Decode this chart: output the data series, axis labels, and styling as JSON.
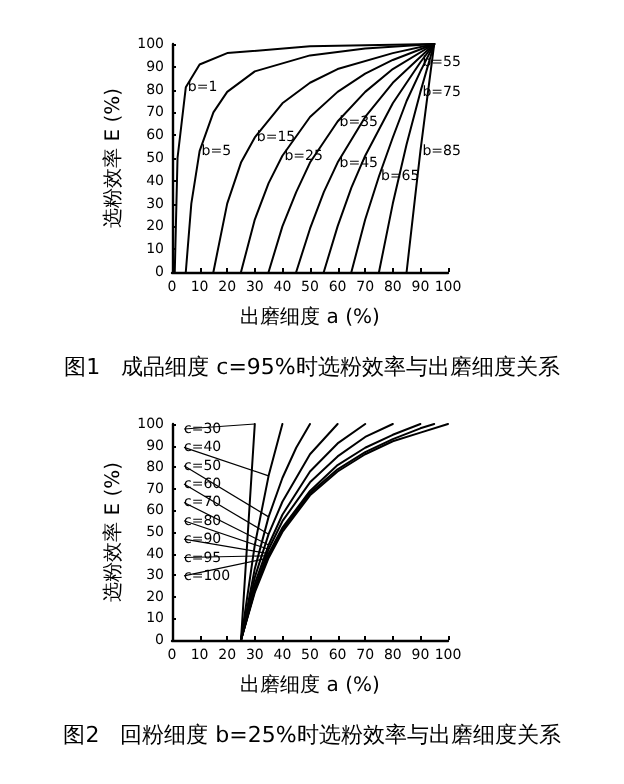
{
  "chart_data": [
    {
      "type": "line",
      "title": "图1   成品细度 c=95%时选粉效率与出磨细度关系",
      "xlabel": "出磨细度 a (%)",
      "ylabel": "选粉效率 E (%)",
      "xlim": [
        0,
        100
      ],
      "ylim": [
        0,
        100
      ],
      "xticks": [
        0,
        10,
        20,
        30,
        40,
        50,
        60,
        70,
        80,
        90,
        100
      ],
      "yticks": [
        0,
        10,
        20,
        30,
        40,
        50,
        60,
        70,
        80,
        90,
        100
      ],
      "marker": "none",
      "line_style": "solid",
      "series": [
        {
          "name": "b=1",
          "color": "#000000",
          "x": [
            1,
            2,
            5,
            10,
            20,
            50,
            95
          ],
          "values": [
            0,
            50,
            81,
            91,
            96,
            99,
            100
          ]
        },
        {
          "name": "b=5",
          "color": "#000000",
          "x": [
            5,
            7,
            10,
            15,
            20,
            30,
            50,
            70,
            95
          ],
          "values": [
            0,
            30,
            53,
            70,
            79,
            88,
            95,
            98,
            100
          ]
        },
        {
          "name": "b=15",
          "color": "#000000",
          "x": [
            15,
            20,
            25,
            30,
            40,
            50,
            60,
            80,
            95
          ],
          "values": [
            0,
            30,
            48,
            59,
            74,
            83,
            89,
            96,
            100
          ]
        },
        {
          "name": "b=25",
          "color": "#000000",
          "x": [
            25,
            30,
            35,
            40,
            50,
            60,
            70,
            80,
            95
          ],
          "values": [
            0,
            23,
            39,
            51,
            68,
            79,
            87,
            93,
            100
          ]
        },
        {
          "name": "b=35",
          "color": "#000000",
          "x": [
            35,
            40,
            45,
            50,
            60,
            70,
            80,
            95
          ],
          "values": [
            0,
            20,
            35,
            48,
            66,
            79,
            89,
            100
          ]
        },
        {
          "name": "b=45",
          "color": "#000000",
          "x": [
            45,
            50,
            55,
            60,
            70,
            80,
            95
          ],
          "values": [
            0,
            19,
            35,
            48,
            68,
            83,
            100
          ]
        },
        {
          "name": "b=55",
          "color": "#000000",
          "x": [
            55,
            60,
            65,
            70,
            80,
            90,
            95
          ],
          "values": [
            0,
            20,
            37,
            51,
            74,
            92,
            100
          ]
        },
        {
          "name": "b=65",
          "color": "#000000",
          "x": [
            65,
            70,
            75,
            80,
            85,
            90,
            95
          ],
          "values": [
            0,
            23,
            42,
            59,
            75,
            88,
            100
          ]
        },
        {
          "name": "b=75",
          "color": "#000000",
          "x": [
            75,
            80,
            85,
            90,
            95
          ],
          "values": [
            0,
            30,
            56,
            79,
            100
          ]
        },
        {
          "name": "b=85",
          "color": "#000000",
          "x": [
            85,
            88,
            90,
            92,
            95
          ],
          "values": [
            0,
            32,
            53,
            72,
            100
          ]
        }
      ]
    },
    {
      "type": "line",
      "title": "图2   回粉细度 b=25%时选粉效率与出磨细度关系",
      "xlabel": "出磨细度 a (%)",
      "ylabel": "选粉效率 E (%)",
      "xlim": [
        0,
        100
      ],
      "ylim": [
        0,
        100
      ],
      "xticks": [
        0,
        10,
        20,
        30,
        40,
        50,
        60,
        70,
        80,
        90,
        100
      ],
      "yticks": [
        0,
        10,
        20,
        30,
        40,
        50,
        60,
        70,
        80,
        90,
        100
      ],
      "marker": "none",
      "line_style": "solid",
      "series": [
        {
          "name": "c=30",
          "color": "#000000",
          "x": [
            25,
            30
          ],
          "values": [
            0,
            100
          ]
        },
        {
          "name": "c=40",
          "color": "#000000",
          "x": [
            25,
            30,
            35,
            40
          ],
          "values": [
            0,
            44,
            76,
            100
          ]
        },
        {
          "name": "c=50",
          "color": "#000000",
          "x": [
            25,
            30,
            35,
            40,
            45,
            50
          ],
          "values": [
            0,
            33,
            57,
            75,
            89,
            100
          ]
        },
        {
          "name": "c=60",
          "color": "#000000",
          "x": [
            25,
            30,
            35,
            40,
            50,
            60
          ],
          "values": [
            0,
            29,
            49,
            64,
            86,
            100
          ]
        },
        {
          "name": "c=70",
          "color": "#000000",
          "x": [
            25,
            30,
            35,
            40,
            50,
            60,
            70
          ],
          "values": [
            0,
            26,
            44,
            58,
            78,
            91,
            100
          ]
        },
        {
          "name": "c=80",
          "color": "#000000",
          "x": [
            25,
            30,
            35,
            40,
            50,
            60,
            70,
            80
          ],
          "values": [
            0,
            24,
            42,
            55,
            73,
            85,
            94,
            100
          ]
        },
        {
          "name": "c=90",
          "color": "#000000",
          "x": [
            25,
            30,
            35,
            40,
            50,
            60,
            70,
            80,
            90
          ],
          "values": [
            0,
            23,
            40,
            52,
            69,
            81,
            89,
            95,
            100
          ]
        },
        {
          "name": "c=95",
          "color": "#000000",
          "x": [
            25,
            30,
            35,
            40,
            50,
            60,
            70,
            80,
            90,
            95
          ],
          "values": [
            0,
            23,
            39,
            51,
            68,
            79,
            87,
            93,
            98,
            100
          ]
        },
        {
          "name": "c=100",
          "color": "#000000",
          "x": [
            25,
            30,
            35,
            40,
            50,
            60,
            70,
            80,
            90,
            100
          ],
          "values": [
            0,
            22,
            38,
            50,
            67,
            78,
            86,
            92,
            96,
            100
          ]
        }
      ]
    }
  ]
}
